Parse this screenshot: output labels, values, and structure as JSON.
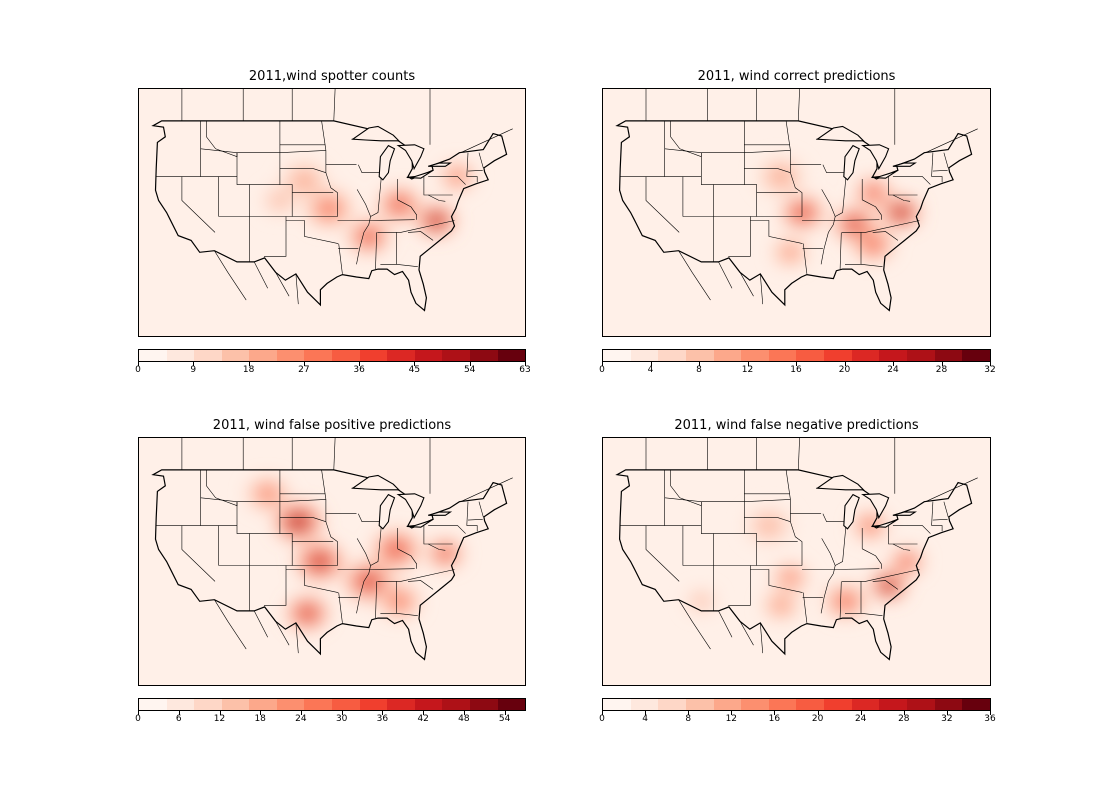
{
  "figure": {
    "panels": [
      {
        "title": "2011,wind spotter counts",
        "cbar_max": 63,
        "ticks": [
          0,
          9,
          18,
          27,
          36,
          45,
          54,
          63
        ],
        "hotspots": [
          {
            "name": "mid-atlantic",
            "lat": 36.5,
            "lon": -78.5,
            "intensity": 1.0,
            "r": 3.2
          },
          {
            "name": "kentucky-ohio",
            "lat": 38.5,
            "lon": -84.5,
            "intensity": 0.75,
            "r": 3.5
          },
          {
            "name": "midsouth",
            "lat": 34.5,
            "lon": -89.5,
            "intensity": 0.75,
            "r": 3.5
          },
          {
            "name": "missouri-kansas",
            "lat": 38.0,
            "lon": -96.0,
            "intensity": 0.6,
            "r": 4.0
          },
          {
            "name": "northeast",
            "lat": 42.0,
            "lon": -75.0,
            "intensity": 0.55,
            "r": 3.0
          },
          {
            "name": "plains",
            "lat": 41.5,
            "lon": -100.0,
            "intensity": 0.4,
            "r": 4.0
          },
          {
            "name": "colorado",
            "lat": 39.0,
            "lon": -104.0,
            "intensity": 0.35,
            "r": 3.0
          }
        ]
      },
      {
        "title": "2011, wind correct predictions",
        "cbar_max": 32,
        "ticks": [
          0,
          4,
          8,
          12,
          16,
          20,
          24,
          28,
          32
        ],
        "hotspots": [
          {
            "name": "mid-atlantic",
            "lat": 37.5,
            "lon": -78.5,
            "intensity": 1.0,
            "r": 3.2
          },
          {
            "name": "tennessee",
            "lat": 36.0,
            "lon": -86.0,
            "intensity": 0.85,
            "r": 3.5
          },
          {
            "name": "missouri-kansas",
            "lat": 37.5,
            "lon": -94.5,
            "intensity": 0.8,
            "r": 3.5
          },
          {
            "name": "ohio",
            "lat": 40.0,
            "lon": -83.0,
            "intensity": 0.7,
            "r": 3.0
          },
          {
            "name": "southeast",
            "lat": 33.5,
            "lon": -83.0,
            "intensity": 0.65,
            "r": 3.5
          },
          {
            "name": "texas-east",
            "lat": 32.5,
            "lon": -96.5,
            "intensity": 0.5,
            "r": 3.0
          },
          {
            "name": "plains",
            "lat": 42.0,
            "lon": -98.0,
            "intensity": 0.4,
            "r": 4.0
          }
        ]
      },
      {
        "title": "2011, wind false positive predictions",
        "cbar_max": 57,
        "ticks": [
          0,
          6,
          12,
          18,
          24,
          30,
          36,
          42,
          48,
          54
        ],
        "hotspots": [
          {
            "name": "nebraska-dakota",
            "lat": 42.5,
            "lon": -101.0,
            "intensity": 1.0,
            "r": 4.0
          },
          {
            "name": "kansas-oklahoma",
            "lat": 37.5,
            "lon": -97.5,
            "intensity": 0.9,
            "r": 4.0
          },
          {
            "name": "texas",
            "lat": 31.0,
            "lon": -99.5,
            "intensity": 0.85,
            "r": 3.5
          },
          {
            "name": "arkansas-tennessee",
            "lat": 35.0,
            "lon": -89.5,
            "intensity": 0.85,
            "r": 4.0
          },
          {
            "name": "ohio-valley",
            "lat": 39.0,
            "lon": -85.0,
            "intensity": 0.75,
            "r": 4.0
          },
          {
            "name": "mid-atlantic",
            "lat": 38.5,
            "lon": -77.0,
            "intensity": 0.75,
            "r": 3.0
          },
          {
            "name": "southeast",
            "lat": 32.5,
            "lon": -84.5,
            "intensity": 0.6,
            "r": 3.5
          },
          {
            "name": "montana",
            "lat": 46.0,
            "lon": -106.0,
            "intensity": 0.55,
            "r": 3.5
          }
        ]
      },
      {
        "title": "2011, wind false negative predictions",
        "cbar_max": 36,
        "ticks": [
          0,
          4,
          8,
          12,
          16,
          20,
          24,
          28,
          32,
          36
        ],
        "hotspots": [
          {
            "name": "carolinas",
            "lat": 34.5,
            "lon": -80.5,
            "intensity": 1.0,
            "r": 3.0
          },
          {
            "name": "virginia",
            "lat": 37.5,
            "lon": -77.5,
            "intensity": 0.7,
            "r": 2.8
          },
          {
            "name": "deep-south",
            "lat": 32.5,
            "lon": -87.5,
            "intensity": 0.65,
            "r": 3.5
          },
          {
            "name": "great-lakes",
            "lat": 42.0,
            "lon": -83.5,
            "intensity": 0.6,
            "r": 3.0
          },
          {
            "name": "oklahoma",
            "lat": 35.5,
            "lon": -96.5,
            "intensity": 0.55,
            "r": 3.0
          },
          {
            "name": "texas",
            "lat": 32.0,
            "lon": -98.0,
            "intensity": 0.5,
            "r": 3.0
          },
          {
            "name": "arizona",
            "lat": 32.5,
            "lon": -111.0,
            "intensity": 0.35,
            "r": 2.5
          },
          {
            "name": "plains",
            "lat": 42.0,
            "lon": -100.0,
            "intensity": 0.35,
            "r": 4.0
          }
        ]
      }
    ],
    "colormap": [
      "#fff5f0",
      "#fee0d2",
      "#fcbba1",
      "#fc9272",
      "#fb6a4a",
      "#ef3b2c",
      "#cb181d",
      "#a50f15",
      "#67000d"
    ],
    "colorbar_levels": 14
  }
}
